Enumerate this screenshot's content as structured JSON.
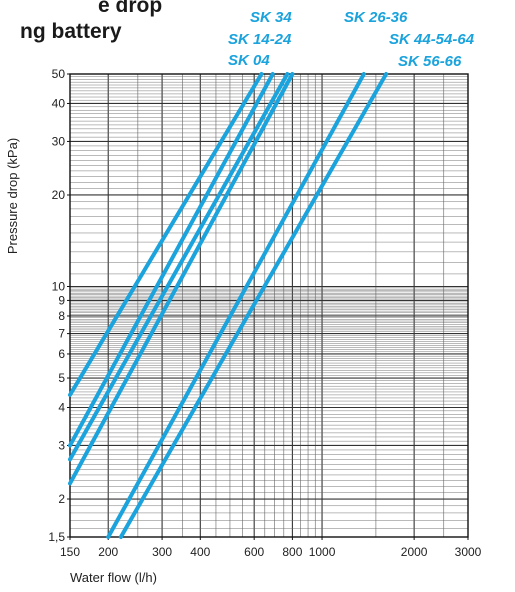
{
  "chart_data": {
    "type": "line",
    "title_lines": [
      "e drop",
      "ng battery"
    ],
    "xlabel": "Water flow (l/h)",
    "ylabel": "Pressure drop (kPa)",
    "x_scale": "log",
    "y_scale": "log",
    "xlim": [
      150,
      3000
    ],
    "ylim": [
      1.5,
      50
    ],
    "x_ticks": [
      150,
      200,
      300,
      400,
      600,
      800,
      1000,
      2000,
      3000
    ],
    "x_tick_labels": [
      "150",
      "200",
      "300",
      "400",
      "600",
      "800",
      "1000",
      "2000",
      "3000"
    ],
    "y_ticks": [
      1.5,
      2,
      3,
      4,
      5,
      6,
      7,
      8,
      9,
      10,
      20,
      30,
      40,
      50
    ],
    "y_tick_labels": [
      "1,5",
      "2",
      "3",
      "4",
      "5",
      "6",
      "7",
      "8",
      "9",
      "10",
      "20",
      "30",
      "40",
      "50"
    ],
    "grid": true,
    "line_color": "#1aa3dc",
    "series": [
      {
        "name": "SK 04",
        "points": [
          [
            150,
            4.4
          ],
          [
            634,
            50
          ]
        ]
      },
      {
        "name": "SK 14-24",
        "points": [
          [
            150,
            3.0
          ],
          [
            690,
            50
          ]
        ]
      },
      {
        "name": "SK 34",
        "points": [
          [
            150,
            2.7
          ],
          [
            770,
            50
          ]
        ]
      },
      {
        "name": "SK 26-36",
        "points": [
          [
            150,
            2.25
          ],
          [
            800,
            50
          ]
        ]
      },
      {
        "name": "SK 44-54-64",
        "points": [
          [
            200,
            1.5
          ],
          [
            1370,
            50
          ]
        ]
      },
      {
        "name": "SK 56-66",
        "points": [
          [
            220,
            1.5
          ],
          [
            1620,
            50
          ]
        ]
      }
    ]
  }
}
